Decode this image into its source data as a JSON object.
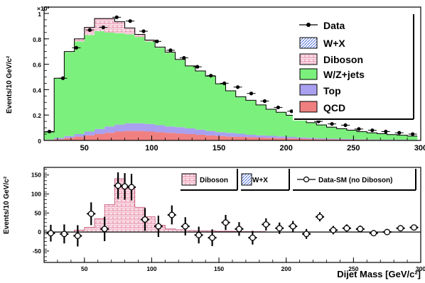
{
  "chart_data": [
    {
      "type": "area",
      "stacked": true,
      "ylabel": "Events/10 GeV/c²",
      "exponent_label": "×10³",
      "xlim": [
        20,
        300
      ],
      "ylim": [
        0,
        1.05
      ],
      "x_ticks": [
        "50",
        "100",
        "150",
        "200",
        "250",
        "300"
      ],
      "y_ticks": [
        "0",
        "0.2",
        "0.4",
        "0.6",
        "0.8",
        "1"
      ],
      "bin_width": 7.5,
      "bin_edges_start": 20,
      "series": [
        {
          "name": "QCD",
          "color": "#f08080",
          "values": [
            0.005,
            0.01,
            0.02,
            0.03,
            0.04,
            0.05,
            0.06,
            0.07,
            0.075,
            0.075,
            0.07,
            0.065,
            0.06,
            0.055,
            0.05,
            0.045,
            0.04,
            0.035,
            0.03,
            0.028,
            0.025,
            0.022,
            0.02,
            0.018,
            0.016,
            0.014,
            0.012,
            0.01,
            0.009,
            0.008,
            0.007,
            0.006,
            0.005,
            0.005,
            0.004,
            0.004,
            0.003
          ]
        },
        {
          "name": "Top",
          "color": "#a9a0f0",
          "values": [
            0.002,
            0.01,
            0.015,
            0.02,
            0.03,
            0.04,
            0.05,
            0.055,
            0.06,
            0.06,
            0.06,
            0.055,
            0.05,
            0.05,
            0.045,
            0.04,
            0.035,
            0.03,
            0.03,
            0.025,
            0.02,
            0.018,
            0.016,
            0.014,
            0.012,
            0.01,
            0.008,
            0.007,
            0.006,
            0.005,
            0.004,
            0.003,
            0.003,
            0.002,
            0.002,
            0.002,
            0.001
          ]
        },
        {
          "name": "W/Z+jets",
          "color": "#7cf07c",
          "values": [
            0.06,
            0.47,
            0.66,
            0.73,
            0.76,
            0.77,
            0.74,
            0.72,
            0.7,
            0.68,
            0.65,
            0.61,
            0.58,
            0.53,
            0.49,
            0.46,
            0.43,
            0.38,
            0.33,
            0.29,
            0.27,
            0.24,
            0.21,
            0.19,
            0.17,
            0.14,
            0.12,
            0.105,
            0.09,
            0.08,
            0.07,
            0.06,
            0.052,
            0.046,
            0.04,
            0.035,
            0.03
          ]
        },
        {
          "name": "Diboson",
          "color": "#f9c8d8",
          "values": [
            0,
            0,
            0.005,
            0.02,
            0.06,
            0.1,
            0.11,
            0.09,
            0.05,
            0.02,
            0.01,
            0.005,
            0.005,
            0.003,
            0.002,
            0.002,
            0.002,
            0.001,
            0.001,
            0.001,
            0.001,
            0,
            0,
            0,
            0,
            0,
            0,
            0,
            0,
            0,
            0,
            0,
            0,
            0,
            0,
            0,
            0
          ]
        },
        {
          "name": "W+X",
          "color": "#dfe9f7",
          "values": [
            0,
            0,
            0,
            0,
            0,
            0,
            0,
            0,
            0,
            0,
            0,
            0,
            0,
            0,
            0,
            0,
            0,
            0,
            0,
            0,
            0,
            0,
            0,
            0,
            0,
            0,
            0,
            0,
            0,
            0,
            0,
            0,
            0,
            0,
            0,
            0,
            0
          ]
        }
      ],
      "data_points": {
        "name": "Data",
        "x": [
          24,
          34,
          44,
          54,
          64,
          74,
          84,
          94,
          104,
          114,
          124,
          134,
          144,
          154,
          164,
          174,
          184,
          194,
          204,
          214,
          224,
          234,
          244,
          254,
          264,
          274,
          284,
          294
        ],
        "y": [
          0.07,
          0.49,
          0.73,
          0.87,
          0.89,
          0.97,
          0.94,
          0.86,
          0.78,
          0.71,
          0.65,
          0.58,
          0.51,
          0.45,
          0.42,
          0.37,
          0.31,
          0.26,
          0.23,
          0.19,
          0.15,
          0.13,
          0.12,
          0.09,
          0.08,
          0.07,
          0.06,
          0.05
        ]
      },
      "legend": {
        "position": "top-right",
        "entries": [
          "Data",
          "W+X",
          "Diboson",
          "W/Z+jets",
          "Top",
          "QCD"
        ]
      }
    },
    {
      "type": "area",
      "ylabel": "Events/10 GeV/c²",
      "xlabel": "Dijet Mass [GeV/c²]",
      "xlim": [
        20,
        300
      ],
      "ylim": [
        -80,
        170
      ],
      "x_ticks": [
        "50",
        "100",
        "150",
        "200",
        "250",
        "300"
      ],
      "y_ticks": [
        "-50",
        "0",
        "50",
        "100",
        "150"
      ],
      "diboson_bins": {
        "name": "Diboson",
        "color": "#f9c8d8",
        "edges_start": 20,
        "bin_width": 7.5,
        "values": [
          0,
          0,
          0,
          5,
          12,
          35,
          72,
          140,
          115,
          65,
          40,
          18,
          8,
          6,
          4,
          3,
          3,
          2,
          2,
          1,
          1,
          1,
          0,
          0,
          0,
          0,
          0,
          0,
          0,
          0,
          0,
          0,
          0,
          0,
          0,
          0,
          0
        ]
      },
      "wx_bins": {
        "name": "W+X",
        "color": "#dfe9f7",
        "values": []
      },
      "residual_points": {
        "name": "Data-SM (no Diboson)",
        "x": [
          25,
          35,
          45,
          55,
          65,
          75,
          80,
          85,
          95,
          105,
          115,
          125,
          135,
          145,
          155,
          165,
          175,
          185,
          195,
          205,
          215,
          225,
          235,
          245,
          255,
          265,
          275,
          285,
          295
        ],
        "y": [
          -3,
          -5,
          -10,
          48,
          8,
          122,
          120,
          118,
          33,
          15,
          45,
          15,
          -8,
          -15,
          25,
          8,
          -15,
          20,
          10,
          15,
          -5,
          40,
          5,
          10,
          8,
          -3,
          0,
          10,
          12
        ],
        "err": [
          22,
          25,
          28,
          30,
          32,
          35,
          35,
          35,
          30,
          28,
          25,
          24,
          22,
          22,
          20,
          18,
          18,
          16,
          15,
          14,
          13,
          12,
          11,
          10,
          9,
          8,
          8,
          7,
          7
        ]
      },
      "legend": {
        "entries": [
          "Diboson",
          "W+X",
          "Data-SM (no Diboson)"
        ]
      }
    }
  ]
}
